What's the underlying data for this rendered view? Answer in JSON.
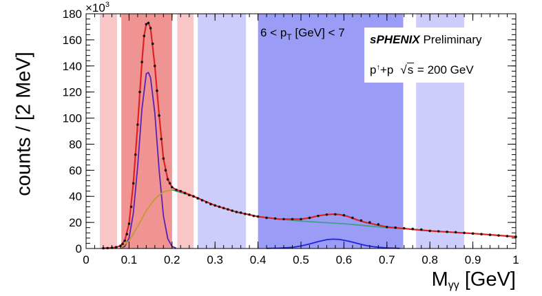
{
  "chart_data": {
    "type": "line",
    "title": "",
    "xlabel_main": "M",
    "xlabel_sub": "γγ",
    "xlabel_unit": "[GeV]",
    "ylabel": "counts / [2 MeV]",
    "y_multiplier_base": "×10",
    "y_multiplier_exp": "3",
    "xlim": [
      0,
      1
    ],
    "ylim": [
      0,
      180
    ],
    "x_ticks": [
      "0",
      "0.1",
      "0.2",
      "0.3",
      "0.4",
      "0.5",
      "0.6",
      "0.7",
      "0.8",
      "0.9",
      "1"
    ],
    "y_ticks": [
      "0",
      "20",
      "40",
      "60",
      "80",
      "100",
      "120",
      "140",
      "160",
      "180"
    ],
    "grid": false,
    "annotations": {
      "pt_prefix": "6 < p",
      "pt_sub": "T",
      "pt_suffix": " [GeV] < 7",
      "experiment": "sPHENIX",
      "status": " Preliminary",
      "system_a": "p",
      "system_a_sup": "↑",
      "system_b": "+p",
      "sqrt_symbol": "√",
      "sqrt_var": "s",
      "energy": " = 200 GeV"
    },
    "regions": [
      {
        "x0": 0.032,
        "x1": 0.072,
        "color": "#f8c6c6"
      },
      {
        "x0": 0.082,
        "x1": 0.2,
        "color": "#ef9393"
      },
      {
        "x0": 0.212,
        "x1": 0.25,
        "color": "#f8c6c6"
      },
      {
        "x0": 0.26,
        "x1": 0.372,
        "color": "#cccdfb"
      },
      {
        "x0": 0.4,
        "x1": 0.738,
        "color": "#9b9cf6"
      },
      {
        "x0": 0.768,
        "x1": 0.88,
        "color": "#cccdfb"
      }
    ],
    "series": [
      {
        "role": "pi0_peak",
        "color": "#5a20b0",
        "x": [
          0.08,
          0.09,
          0.1,
          0.11,
          0.12,
          0.13,
          0.14,
          0.145,
          0.15,
          0.16,
          0.17,
          0.18,
          0.19,
          0.2,
          0.21
        ],
        "y": [
          0.3,
          1.6,
          8,
          27,
          63,
          107,
          134,
          135,
          131,
          104,
          60,
          25,
          7.5,
          1.6,
          0.2
        ]
      },
      {
        "role": "background_low",
        "color": "#c49a2a",
        "x": [
          0.08,
          0.1,
          0.12,
          0.14,
          0.16,
          0.18,
          0.2,
          0.22,
          0.24
        ],
        "y": [
          0,
          6,
          17,
          29,
          38,
          43.5,
          45,
          44,
          41
        ]
      },
      {
        "role": "background_high",
        "color": "#3aa088",
        "x": [
          0.2,
          0.25,
          0.3,
          0.35,
          0.4,
          0.45,
          0.5,
          0.55,
          0.6,
          0.65,
          0.7,
          0.75,
          0.8,
          0.85,
          0.9,
          0.95,
          1.0
        ],
        "y": [
          45,
          40,
          33,
          28,
          24.5,
          22.5,
          21,
          20,
          19,
          17.5,
          16,
          15,
          13.5,
          12.5,
          11.5,
          10.3,
          9
        ]
      },
      {
        "role": "eta_peak",
        "color": "#2020e0",
        "x": [
          0.42,
          0.45,
          0.48,
          0.5,
          0.52,
          0.54,
          0.56,
          0.575,
          0.59,
          0.61,
          0.63,
          0.65,
          0.67,
          0.7,
          0.73
        ],
        "y": [
          0.1,
          0.3,
          0.9,
          1.9,
          3.5,
          5.3,
          6.8,
          7.2,
          6.9,
          5.7,
          4.0,
          2.4,
          1.3,
          0.4,
          0.1
        ]
      },
      {
        "role": "total_fit",
        "color": "#e02020",
        "x": [
          0.04,
          0.06,
          0.07,
          0.08,
          0.09,
          0.1,
          0.11,
          0.12,
          0.13,
          0.135,
          0.14,
          0.145,
          0.15,
          0.16,
          0.17,
          0.18,
          0.19,
          0.2,
          0.21,
          0.22,
          0.25,
          0.3,
          0.35,
          0.4,
          0.45,
          0.5,
          0.52,
          0.54,
          0.56,
          0.575,
          0.59,
          0.61,
          0.63,
          0.65,
          0.7,
          0.75,
          0.8,
          0.85,
          0.9,
          0.95,
          1.0
        ],
        "y": [
          0.2,
          0.5,
          1,
          2,
          6,
          19,
          50,
          95,
          143,
          163,
          172,
          173,
          169,
          140,
          102,
          69,
          53,
          47,
          45,
          44,
          40,
          33,
          28,
          24.5,
          22.5,
          22.5,
          23.5,
          25,
          26,
          26.3,
          26,
          24.5,
          22,
          20,
          16.5,
          15,
          13.5,
          12.5,
          11.5,
          10.3,
          9
        ]
      },
      {
        "role": "data_points",
        "color": "#111111",
        "x": [
          0.04,
          0.05,
          0.06,
          0.07,
          0.08,
          0.085,
          0.09,
          0.095,
          0.1,
          0.105,
          0.11,
          0.115,
          0.12,
          0.125,
          0.13,
          0.135,
          0.14,
          0.145,
          0.15,
          0.155,
          0.16,
          0.165,
          0.17,
          0.175,
          0.18,
          0.185,
          0.19,
          0.195,
          0.2,
          0.21,
          0.22,
          0.23,
          0.24,
          0.25,
          0.26,
          0.27,
          0.28,
          0.29,
          0.3,
          0.31,
          0.32,
          0.33,
          0.34,
          0.35,
          0.36,
          0.37,
          0.38,
          0.39,
          0.4,
          0.42,
          0.44,
          0.46,
          0.48,
          0.5,
          0.52,
          0.54,
          0.56,
          0.58,
          0.6,
          0.62,
          0.64,
          0.66,
          0.68,
          0.7,
          0.72,
          0.74,
          0.76,
          0.78,
          0.8,
          0.82,
          0.84,
          0.86,
          0.88,
          0.9,
          0.92,
          0.94,
          0.96,
          0.98,
          1.0
        ],
        "y": [
          0.2,
          0.3,
          0.5,
          1,
          2,
          3.5,
          6,
          11,
          19,
          32,
          50,
          72,
          95,
          120,
          143,
          163,
          172,
          173,
          169,
          157,
          140,
          121,
          102,
          84,
          69,
          60,
          53,
          50,
          47,
          45,
          44,
          42.5,
          41,
          40,
          38.5,
          37,
          35.5,
          34,
          33,
          32,
          31,
          30,
          29,
          28,
          27.5,
          26.5,
          26,
          25,
          24.5,
          23.5,
          23,
          22.5,
          22.5,
          22.5,
          23.5,
          25,
          26,
          26.2,
          25.5,
          23.5,
          21.5,
          20,
          18.5,
          16.5,
          16,
          15.5,
          15,
          14.5,
          13.5,
          13.2,
          12.8,
          12.5,
          12,
          11.5,
          11,
          10.5,
          10,
          9.5,
          9
        ]
      }
    ]
  }
}
